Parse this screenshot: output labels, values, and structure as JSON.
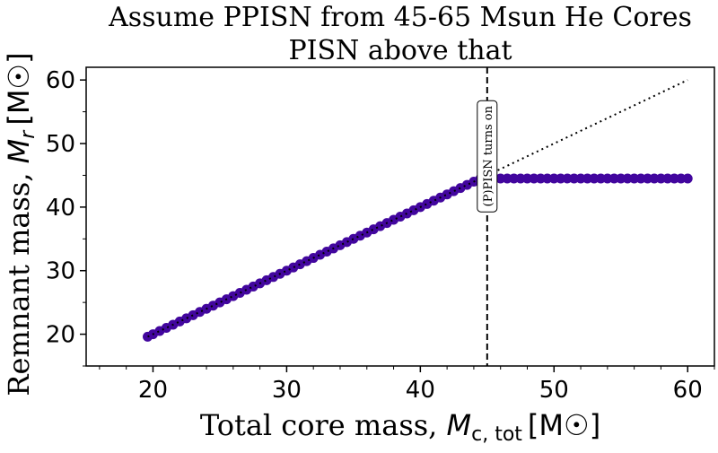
{
  "chart_data": {
    "type": "scatter",
    "title_line1": "Assume PPISN from 45-65 Msun He Cores",
    "title_line2": "PISN above that",
    "xlabel_prefix": "Total core mass, ",
    "xlabel_symbol": "M",
    "xlabel_sub": "c, tot",
    "xlabel_unit": "[M",
    "ylabel_prefix": "Remnant mass, ",
    "ylabel_symbol": "M",
    "ylabel_sub": "r",
    "ylabel_unit": "[M",
    "xlim": [
      15,
      62
    ],
    "ylim": [
      15,
      62
    ],
    "xticks": [
      20,
      30,
      40,
      50,
      60
    ],
    "yticks": [
      20,
      30,
      40,
      50,
      60
    ],
    "grid": false,
    "marker_color": "#42069e",
    "reference_line": {
      "style": "dotted",
      "color": "#000000",
      "x": [
        19.6,
        60
      ],
      "y": [
        19.6,
        60
      ]
    },
    "vline": {
      "x": 45,
      "style": "dashed",
      "color": "#000000"
    },
    "annotation": {
      "text": "(P)PISN turns on",
      "x": 45,
      "y": 48
    },
    "x": [
      19.6,
      20,
      20.5,
      21,
      21.5,
      22,
      22.5,
      23,
      23.5,
      24,
      24.5,
      25,
      25.5,
      26,
      26.5,
      27,
      27.5,
      28,
      28.5,
      29,
      29.5,
      30,
      30.5,
      31,
      31.5,
      32,
      32.5,
      33,
      33.5,
      34,
      34.5,
      35,
      35.5,
      36,
      36.5,
      37,
      37.5,
      38,
      38.5,
      39,
      39.5,
      40,
      40.5,
      41,
      41.5,
      42,
      42.5,
      43,
      43.5,
      44,
      44.5,
      45,
      45.5,
      46,
      46.5,
      47,
      47.5,
      48,
      48.5,
      49,
      49.5,
      50,
      50.5,
      51,
      51.5,
      52,
      52.5,
      53,
      53.5,
      54,
      54.5,
      55,
      55.5,
      56,
      56.5,
      57,
      57.5,
      58,
      58.5,
      59,
      59.5,
      60
    ],
    "y": [
      19.6,
      20,
      20.5,
      21,
      21.5,
      22,
      22.5,
      23,
      23.5,
      24,
      24.5,
      25,
      25.5,
      26,
      26.5,
      27,
      27.5,
      28,
      28.5,
      29,
      29.5,
      30,
      30.5,
      31,
      31.5,
      32,
      32.5,
      33,
      33.5,
      34,
      34.5,
      35,
      35.5,
      36,
      36.5,
      37,
      37.5,
      38,
      38.5,
      39,
      39.5,
      40,
      40.5,
      41,
      41.5,
      42,
      42.5,
      43,
      43.5,
      44,
      44.5,
      44.5,
      44.5,
      44.5,
      44.5,
      44.5,
      44.5,
      44.5,
      44.5,
      44.5,
      44.5,
      44.5,
      44.5,
      44.5,
      44.5,
      44.5,
      44.5,
      44.5,
      44.5,
      44.5,
      44.5,
      44.5,
      44.5,
      44.5,
      44.5,
      44.5,
      44.5,
      44.5,
      44.5,
      44.5,
      44.5,
      44.5
    ]
  }
}
